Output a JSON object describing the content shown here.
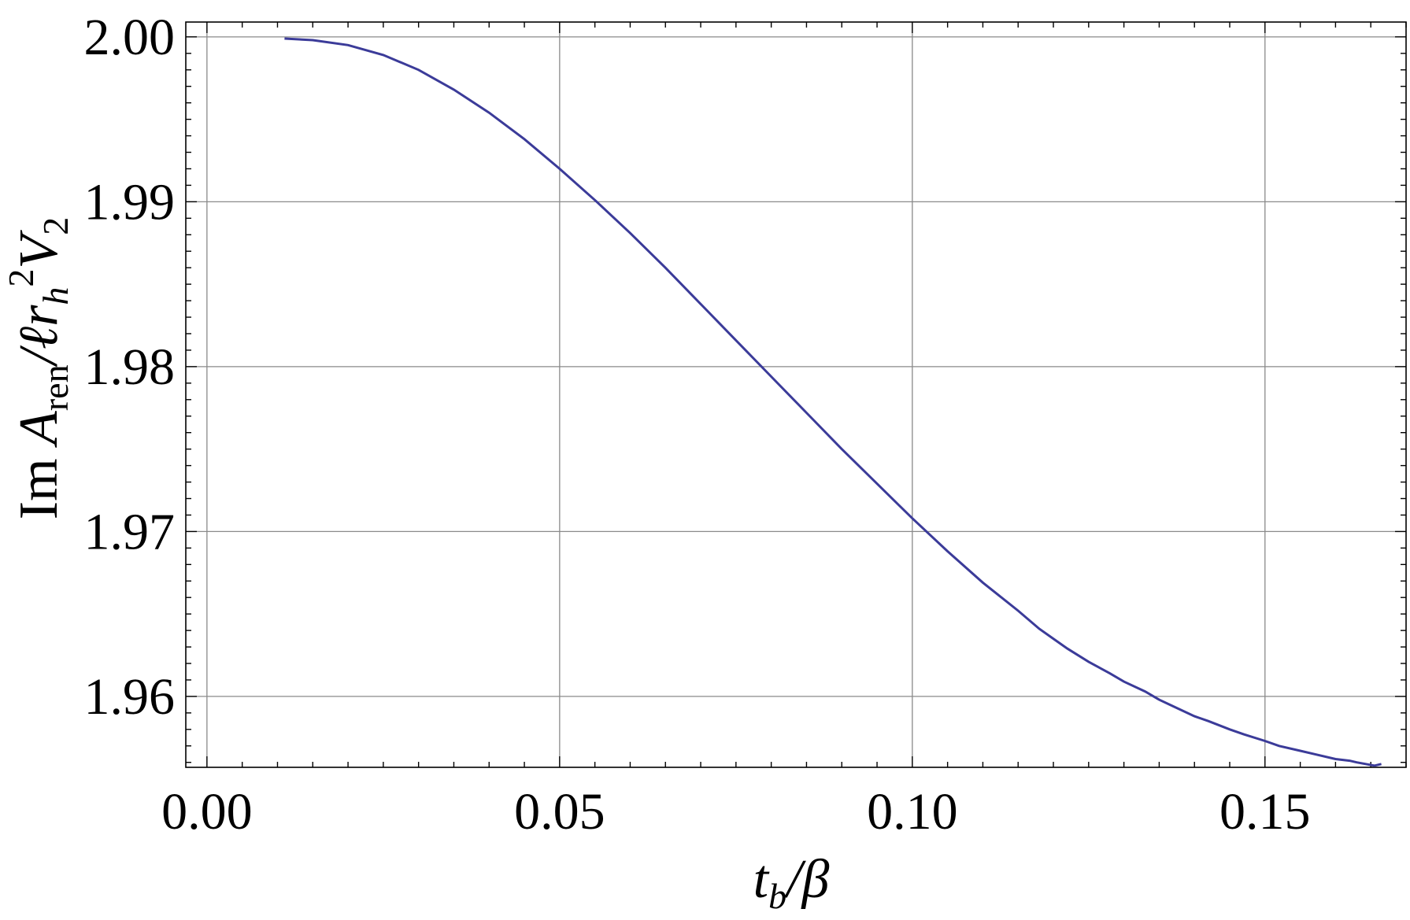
{
  "chart_data": {
    "type": "line",
    "title": "",
    "xlabel": {
      "base": "t",
      "sub": "b",
      "rest": "/β"
    },
    "ylabel": {
      "prefix": "Im ",
      "A": "A",
      "A_sub": "ren",
      "mid": "/ℓr",
      "r_sub": "h",
      "sup": "2",
      "V": "V",
      "V_sub": "2"
    },
    "xlim": [
      -0.003,
      0.17
    ],
    "ylim": [
      1.9557,
      2.0009
    ],
    "xticks": [
      0.0,
      0.05,
      0.1,
      0.15
    ],
    "xtick_labels": [
      "0.00",
      "0.05",
      "0.10",
      "0.15"
    ],
    "yticks": [
      1.96,
      1.97,
      1.98,
      1.99,
      2.0
    ],
    "ytick_labels": [
      "1.96",
      "1.97",
      "1.98",
      "1.99",
      "2.00"
    ],
    "grid": true,
    "line_color": "#3b3b99",
    "series": [
      {
        "x": [
          0.011,
          0.015,
          0.02,
          0.025,
          0.03,
          0.035,
          0.04,
          0.045,
          0.05,
          0.055,
          0.06,
          0.065,
          0.07,
          0.075,
          0.08,
          0.085,
          0.09,
          0.095,
          0.1,
          0.105,
          0.11,
          0.115,
          0.118,
          0.12,
          0.122,
          0.125,
          0.128,
          0.13,
          0.133,
          0.135,
          0.137,
          0.14,
          0.142,
          0.145,
          0.147,
          0.15,
          0.152,
          0.155,
          0.157,
          0.16,
          0.162,
          0.163,
          0.1655,
          0.1665
        ],
        "y": [
          1.9999,
          1.9998,
          1.9995,
          1.9989,
          1.998,
          1.9968,
          1.9954,
          1.9938,
          1.992,
          1.9901,
          1.9881,
          1.986,
          1.9838,
          1.9816,
          1.9794,
          1.9772,
          1.975,
          1.9729,
          1.9708,
          1.9688,
          1.9669,
          1.9652,
          1.9641,
          1.9635,
          1.9629,
          1.9621,
          1.9614,
          1.9609,
          1.9603,
          1.9598,
          1.9594,
          1.9588,
          1.9585,
          1.958,
          1.9577,
          1.9573,
          1.957,
          1.9567,
          1.9565,
          1.9562,
          1.9561,
          1.956,
          1.9558,
          1.9559
        ]
      }
    ]
  }
}
